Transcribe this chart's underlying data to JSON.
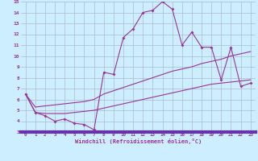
{
  "xlabel": "Windchill (Refroidissement éolien,°C)",
  "x": [
    0,
    1,
    2,
    3,
    4,
    5,
    6,
    7,
    8,
    9,
    10,
    11,
    12,
    13,
    14,
    15,
    16,
    17,
    18,
    19,
    20,
    21,
    22,
    23
  ],
  "y_main": [
    6.5,
    4.8,
    4.5,
    4.0,
    4.2,
    3.8,
    3.7,
    3.2,
    8.5,
    8.3,
    11.7,
    12.5,
    14.0,
    14.2,
    15.0,
    14.3,
    11.0,
    12.2,
    10.8,
    10.8,
    7.8,
    10.8,
    7.2,
    7.5
  ],
  "y_line1": [
    6.5,
    5.3,
    5.4,
    5.5,
    5.6,
    5.7,
    5.8,
    6.0,
    6.5,
    6.8,
    7.1,
    7.4,
    7.7,
    8.0,
    8.3,
    8.6,
    8.8,
    9.0,
    9.3,
    9.5,
    9.7,
    10.0,
    10.2,
    10.4
  ],
  "y_line2": [
    6.5,
    4.8,
    4.7,
    4.7,
    4.7,
    4.8,
    4.9,
    5.0,
    5.2,
    5.4,
    5.6,
    5.8,
    6.0,
    6.2,
    6.4,
    6.6,
    6.8,
    7.0,
    7.2,
    7.4,
    7.5,
    7.6,
    7.7,
    7.8
  ],
  "color": "#993399",
  "bg_color": "#cceeff",
  "grid_color": "#aabbcc",
  "ylim": [
    3,
    15
  ],
  "xlim": [
    -0.5,
    23.5
  ],
  "yticks": [
    3,
    4,
    5,
    6,
    7,
    8,
    9,
    10,
    11,
    12,
    13,
    14,
    15
  ],
  "xtick_fontsize": 4.2,
  "ytick_fontsize": 4.5,
  "xlabel_fontsize": 5.0,
  "linewidth": 0.8,
  "markersize": 2.0
}
